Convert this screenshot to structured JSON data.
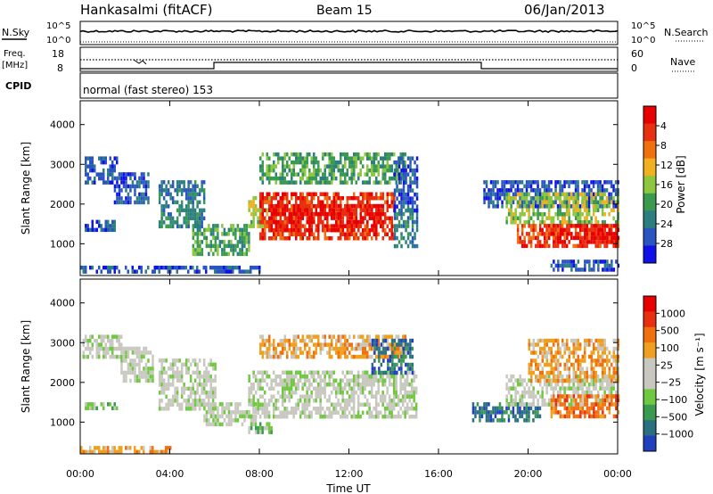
{
  "header": {
    "station": "Hankasalmi (fitACF)",
    "beam": "Beam 15",
    "date": "06/Jan/2013"
  },
  "panels": {
    "nsky": {
      "label": "N.Sky",
      "left_ticks": [
        "10^5",
        "10^0"
      ],
      "right_ticks": [
        "10^5",
        "10^0"
      ],
      "right_label": "N.Search"
    },
    "freq": {
      "label_line1": "Freq.",
      "label_line2": "[MHz]",
      "left_ticks": [
        "18",
        "8"
      ],
      "right_ticks": [
        "60",
        "0"
      ],
      "right_label": "Nave"
    },
    "cpid": {
      "label": "CPID",
      "text": "normal (fast stereo) 153"
    }
  },
  "chart_data": [
    {
      "type": "heatmap",
      "name": "power",
      "ylabel": "Slant Range [km]",
      "ylim": [
        200,
        4600
      ],
      "y_ticks": [
        1000,
        2000,
        3000,
        4000
      ],
      "x_ticks": [
        "00:00",
        "04:00",
        "08:00",
        "12:00",
        "16:00",
        "20:00",
        "00:00"
      ],
      "xlim_hours": [
        0,
        24
      ],
      "colorbar": {
        "label": "Power [dB]",
        "tick_labels": [
          "4",
          "8",
          "12",
          "16",
          "20",
          "24",
          "28"
        ],
        "colors": [
          "#1010e8",
          "#2a55c0",
          "#2b7f7f",
          "#3a9a50",
          "#8dc63f",
          "#f0b020",
          "#f07010",
          "#e83010",
          "#e80000"
        ]
      },
      "regions": [
        {
          "t0": 0.2,
          "t1": 1.6,
          "r0": 2500,
          "r1": 3200,
          "level": 1
        },
        {
          "t0": 0.2,
          "t1": 1.5,
          "r0": 1300,
          "r1": 1600,
          "level": 1
        },
        {
          "t0": 1.5,
          "t1": 3.0,
          "r0": 2000,
          "r1": 2800,
          "level": 1
        },
        {
          "t0": 3.5,
          "t1": 5.5,
          "r0": 1400,
          "r1": 2600,
          "level": 2
        },
        {
          "t0": 5.0,
          "t1": 7.5,
          "r0": 700,
          "r1": 1500,
          "level": 3
        },
        {
          "t0": 7.5,
          "t1": 8.4,
          "r0": 1400,
          "r1": 2200,
          "level": 4
        },
        {
          "t0": 8.0,
          "t1": 14.5,
          "r0": 2500,
          "r1": 3300,
          "level": 3
        },
        {
          "t0": 8.0,
          "t1": 14.0,
          "r0": 1100,
          "r1": 2300,
          "level": 7
        },
        {
          "t0": 8.5,
          "t1": 13.5,
          "r0": 1300,
          "r1": 2000,
          "level": 8
        },
        {
          "t0": 14.0,
          "t1": 15.0,
          "r0": 900,
          "r1": 1900,
          "level": 2
        },
        {
          "t0": 14.0,
          "t1": 15.0,
          "r0": 1800,
          "r1": 3200,
          "level": 1
        },
        {
          "t0": 18.0,
          "t1": 24.0,
          "r0": 1900,
          "r1": 2600,
          "level": 1
        },
        {
          "t0": 19.0,
          "t1": 24.0,
          "r0": 1500,
          "r1": 2300,
          "level": 4
        },
        {
          "t0": 19.5,
          "t1": 24.0,
          "r0": 900,
          "r1": 1500,
          "level": 7
        },
        {
          "t0": 21.0,
          "t1": 24.0,
          "r0": 1000,
          "r1": 1500,
          "level": 8
        },
        {
          "t0": 0.0,
          "t1": 8.0,
          "r0": 250,
          "r1": 450,
          "level": 1
        },
        {
          "t0": 21.0,
          "t1": 24.0,
          "r0": 300,
          "r1": 600,
          "level": 1
        }
      ]
    },
    {
      "type": "heatmap",
      "name": "velocity",
      "ylabel": "Slant Range [km]",
      "ylim": [
        200,
        4600
      ],
      "y_ticks": [
        1000,
        2000,
        3000,
        4000
      ],
      "x_ticks": [
        "00:00",
        "04:00",
        "08:00",
        "12:00",
        "16:00",
        "20:00",
        "00:00"
      ],
      "xlim_hours": [
        0,
        24
      ],
      "xlabel": "Time UT",
      "colorbar": {
        "label": "Velocity [m s⁻¹]",
        "tick_labels": [
          "1000",
          "500",
          "100",
          "25",
          "−25",
          "−100",
          "−500",
          "−1000"
        ],
        "colors": [
          "#2040c0",
          "#2a7080",
          "#3a9a50",
          "#70c840",
          "#c8c8c0",
          "#c8c8c0",
          "#f0a020",
          "#f07010",
          "#e83010",
          "#e80000"
        ]
      },
      "regions": [
        {
          "t0": 0.1,
          "t1": 1.8,
          "r0": 2600,
          "r1": 3200,
          "level": 4
        },
        {
          "t0": 1.8,
          "t1": 3.2,
          "r0": 2000,
          "r1": 2900,
          "level": 4
        },
        {
          "t0": 3.5,
          "t1": 6.0,
          "r0": 1300,
          "r1": 2600,
          "level": 4
        },
        {
          "t0": 5.5,
          "t1": 7.8,
          "r0": 900,
          "r1": 1500,
          "level": 4
        },
        {
          "t0": 0.1,
          "t1": 1.6,
          "r0": 1350,
          "r1": 1500,
          "level": 3
        },
        {
          "t0": 7.5,
          "t1": 15.0,
          "r0": 1100,
          "r1": 2300,
          "level": 4
        },
        {
          "t0": 8.0,
          "t1": 14.5,
          "r0": 2600,
          "r1": 3200,
          "level": 6
        },
        {
          "t0": 13.0,
          "t1": 14.8,
          "r0": 2200,
          "r1": 3100,
          "level": 1
        },
        {
          "t0": 7.5,
          "t1": 8.5,
          "r0": 700,
          "r1": 1000,
          "level": 3
        },
        {
          "t0": 17.5,
          "t1": 20.5,
          "r0": 1000,
          "r1": 1500,
          "level": 1
        },
        {
          "t0": 19.0,
          "t1": 24.0,
          "r0": 1400,
          "r1": 2200,
          "level": 4
        },
        {
          "t0": 20.0,
          "t1": 24.0,
          "r0": 2000,
          "r1": 3100,
          "level": 6
        },
        {
          "t0": 21.0,
          "t1": 24.0,
          "r0": 1100,
          "r1": 1700,
          "level": 7
        },
        {
          "t0": 0.0,
          "t1": 4.0,
          "r0": 250,
          "r1": 400,
          "level": 6
        }
      ]
    }
  ]
}
